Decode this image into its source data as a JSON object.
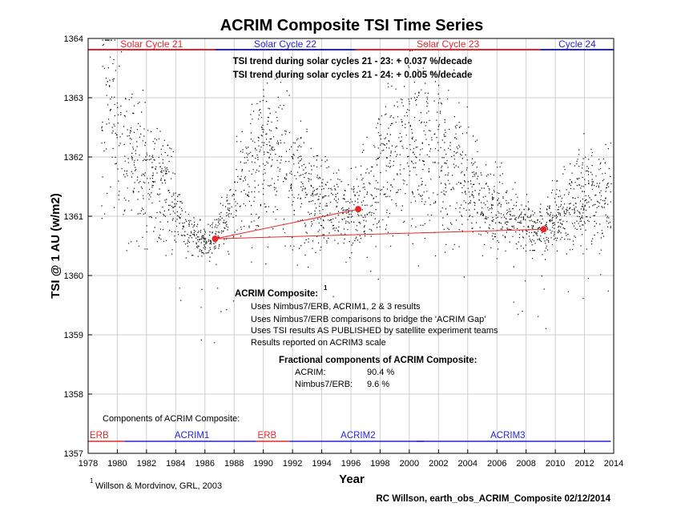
{
  "chart_data": {
    "type": "scatter",
    "title": "ACRIM Composite TSI Time Series",
    "xlabel": "Year",
    "ylabel": "TSI @ 1 AU (w/m2)",
    "xlim": [
      1978,
      2014
    ],
    "ylim": [
      1357,
      1364
    ],
    "grid": true,
    "x_ticks": [
      "1978",
      "1980",
      "1982",
      "1984",
      "1986",
      "1988",
      "1990",
      "1992",
      "1994",
      "1996",
      "1998",
      "2000",
      "2002",
      "2004",
      "2006",
      "2008",
      "2010",
      "2012",
      "2014"
    ],
    "y_ticks": [
      "1357",
      "1358",
      "1359",
      "1360",
      "1361",
      "1362",
      "1363",
      "1364"
    ],
    "cycles": [
      {
        "label": "Solar Cycle 21",
        "start": 1978.0,
        "end": 1986.7,
        "color": "#e8262a"
      },
      {
        "label": "Solar Cycle 22",
        "start": 1986.7,
        "end": 1996.3,
        "color": "#2424d8"
      },
      {
        "label": "Solar Cycle 23",
        "start": 1996.3,
        "end": 2009.0,
        "color": "#e8262a"
      },
      {
        "label": "Cycle 24",
        "start": 2009.0,
        "end": 2014.0,
        "color": "#2424d8"
      }
    ],
    "trend_text": [
      "TSI trend during solar cycles 21 - 23: + 0.037 %/decade",
      "TSI trend during solar cycles 21 - 24: + 0.005 %/decade"
    ],
    "minima": [
      {
        "x": 1986.7,
        "y": 1360.62
      },
      {
        "x": 1996.5,
        "y": 1361.12
      },
      {
        "x": 2009.2,
        "y": 1360.78
      }
    ],
    "trend_lines": [
      {
        "from": 0,
        "to": 1
      },
      {
        "from": 0,
        "to": 2
      }
    ],
    "envelope": [
      [
        1978.9,
        1362.3
      ],
      [
        1979.3,
        1363.6
      ],
      [
        1980.0,
        1362.4
      ],
      [
        1981.0,
        1362.0
      ],
      [
        1982.0,
        1361.8
      ],
      [
        1983.0,
        1361.6
      ],
      [
        1984.0,
        1361.1
      ],
      [
        1985.0,
        1360.7
      ],
      [
        1986.0,
        1360.58
      ],
      [
        1986.7,
        1360.62
      ],
      [
        1987.5,
        1360.9
      ],
      [
        1988.5,
        1361.6
      ],
      [
        1989.5,
        1362.1
      ],
      [
        1990.5,
        1362.0
      ],
      [
        1991.5,
        1362.1
      ],
      [
        1992.5,
        1361.6
      ],
      [
        1993.5,
        1361.35
      ],
      [
        1994.5,
        1361.2
      ],
      [
        1995.5,
        1361.1
      ],
      [
        1996.5,
        1361.12
      ],
      [
        1997.5,
        1361.5
      ],
      [
        1998.5,
        1362.0
      ],
      [
        1999.5,
        1362.3
      ],
      [
        2000.5,
        1362.2
      ],
      [
        2001.5,
        1362.3
      ],
      [
        2002.5,
        1361.9
      ],
      [
        2003.5,
        1361.8
      ],
      [
        2004.5,
        1361.4
      ],
      [
        2005.5,
        1361.2
      ],
      [
        2006.5,
        1361.05
      ],
      [
        2007.5,
        1360.88
      ],
      [
        2008.5,
        1360.8
      ],
      [
        2009.2,
        1360.78
      ],
      [
        2010.0,
        1361.0
      ],
      [
        2011.0,
        1361.2
      ],
      [
        2012.0,
        1361.35
      ],
      [
        2013.0,
        1361.3
      ],
      [
        2013.8,
        1361.4
      ]
    ],
    "composite_note": {
      "title": "ACRIM Composite:",
      "superscript": "1",
      "lines": [
        "Uses Nimbus7/ERB, ACRIM1, 2 & 3  results",
        "Uses Nimbus7/ERB comparisons to bridge the 'ACRIM Gap'",
        "Uses TSI results AS PUBLISHED by satellite experiment teams",
        "Results reported on ACRIM3 scale"
      ]
    },
    "fractional": {
      "title": "Fractional components of ACRIM Composite:",
      "rows": [
        {
          "name": "ACRIM:",
          "value": "90.4 %"
        },
        {
          "name": "Nimbus7/ERB:",
          "value": "9.6 %"
        }
      ]
    },
    "components": {
      "title": "Components of ACRIM Composite:",
      "segments": [
        {
          "label": "ERB",
          "start": 1978.0,
          "end": 1980.5,
          "color": "#e8262a"
        },
        {
          "label": "ACRIM1",
          "start": 1980.5,
          "end": 1989.5,
          "color": "#2424d8"
        },
        {
          "label": "ERB",
          "start": 1989.5,
          "end": 1991.8,
          "color": "#e8262a"
        },
        {
          "label": "ACRIM2",
          "start": 1991.8,
          "end": 2001.0,
          "color": "#2424d8"
        },
        {
          "label": "ACRIM3",
          "start": 2000.5,
          "end": 2013.8,
          "color": "#2424d8"
        }
      ]
    },
    "footnote": {
      "superscript": "1",
      "text": "Willson & Mordvinov, GRL, 2003"
    },
    "credit": "RC Willson, earth_obs_ACRIM_Composite  02/12/2014"
  }
}
